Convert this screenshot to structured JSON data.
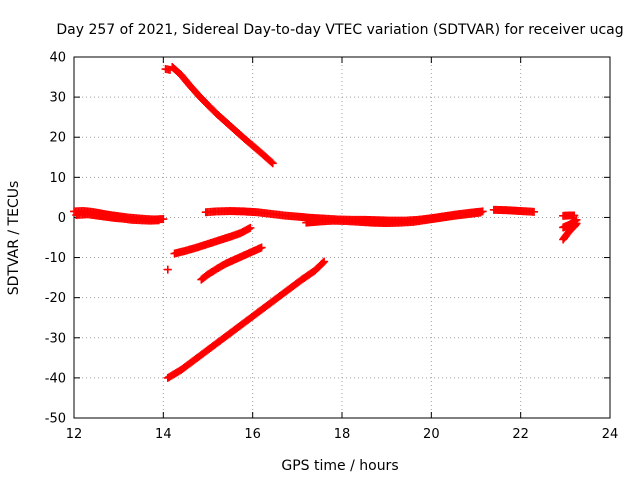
{
  "chart_data": {
    "type": "scatter",
    "title": "Day 257 of 2021, Sidereal Day-to-day VTEC variation (SDTVAR) for receiver ucag",
    "xlabel": "GPS time / hours",
    "ylabel": "SDTVAR / TECUs",
    "xlim": [
      12,
      24
    ],
    "ylim": [
      -50,
      40
    ],
    "x_ticks": [
      12,
      14,
      16,
      18,
      20,
      22,
      24
    ],
    "y_ticks": [
      -50,
      -40,
      -30,
      -20,
      -10,
      0,
      10,
      20,
      30,
      40
    ],
    "grid": true,
    "marker": "+",
    "color": "#ff0000",
    "series": [
      {
        "points": [
          [
            12.0,
            1.5
          ],
          [
            12.2,
            1.6
          ],
          [
            12.4,
            1.4
          ],
          [
            12.6,
            1.0
          ],
          [
            12.8,
            0.6
          ],
          [
            13.0,
            0.3
          ],
          [
            13.2,
            0.0
          ],
          [
            13.4,
            -0.2
          ],
          [
            13.6,
            -0.4
          ],
          [
            13.8,
            -0.5
          ],
          [
            14.0,
            -0.4
          ]
        ]
      },
      {
        "points": [
          [
            12.05,
            0.6
          ],
          [
            12.3,
            0.8
          ],
          [
            12.5,
            0.5
          ],
          [
            12.7,
            0.2
          ],
          [
            12.9,
            -0.1
          ],
          [
            13.1,
            -0.3
          ],
          [
            13.3,
            -0.6
          ],
          [
            13.5,
            -0.7
          ],
          [
            13.7,
            -0.8
          ],
          [
            13.9,
            -0.7
          ]
        ]
      },
      {
        "points": [
          [
            14.2,
            37.5
          ],
          [
            14.4,
            35.5
          ],
          [
            14.6,
            32.8
          ],
          [
            14.8,
            30.3
          ],
          [
            15.0,
            28.0
          ],
          [
            15.2,
            25.8
          ],
          [
            15.4,
            23.8
          ],
          [
            15.6,
            21.8
          ],
          [
            15.8,
            19.8
          ],
          [
            16.0,
            17.9
          ],
          [
            16.2,
            16.0
          ],
          [
            16.45,
            13.5
          ]
        ]
      },
      {
        "points": [
          [
            14.05,
            37.0
          ],
          [
            14.15,
            36.8
          ]
        ]
      },
      {
        "points": [
          [
            14.1,
            -13.0
          ]
        ]
      },
      {
        "points": [
          [
            14.25,
            -9.0
          ],
          [
            14.5,
            -8.3
          ],
          [
            14.75,
            -7.5
          ],
          [
            15.0,
            -6.6
          ],
          [
            15.25,
            -5.7
          ],
          [
            15.5,
            -4.8
          ],
          [
            15.75,
            -3.8
          ],
          [
            15.95,
            -2.6
          ]
        ]
      },
      {
        "points": [
          [
            14.85,
            -15.5
          ],
          [
            15.0,
            -14.2
          ],
          [
            15.2,
            -12.8
          ],
          [
            15.4,
            -11.5
          ],
          [
            15.6,
            -10.5
          ],
          [
            15.8,
            -9.5
          ],
          [
            16.0,
            -8.5
          ],
          [
            16.2,
            -7.5
          ]
        ]
      },
      {
        "points": [
          [
            14.1,
            -40.0
          ],
          [
            14.4,
            -38.0
          ],
          [
            14.7,
            -35.5
          ],
          [
            15.0,
            -33.0
          ],
          [
            15.3,
            -30.5
          ],
          [
            15.6,
            -28.0
          ],
          [
            15.9,
            -25.5
          ],
          [
            16.2,
            -23.0
          ],
          [
            16.5,
            -20.5
          ],
          [
            16.8,
            -18.0
          ],
          [
            17.1,
            -15.5
          ],
          [
            17.4,
            -13.2
          ],
          [
            17.6,
            -11.0
          ]
        ]
      },
      {
        "points": [
          [
            14.95,
            1.3
          ],
          [
            15.2,
            1.5
          ],
          [
            15.5,
            1.6
          ],
          [
            15.8,
            1.5
          ],
          [
            16.1,
            1.3
          ],
          [
            16.4,
            0.9
          ],
          [
            16.7,
            0.5
          ],
          [
            17.0,
            0.2
          ],
          [
            17.3,
            -0.1
          ],
          [
            17.6,
            -0.3
          ],
          [
            17.9,
            -0.5
          ],
          [
            18.2,
            -0.6
          ],
          [
            18.5,
            -0.6
          ],
          [
            18.8,
            -0.7
          ],
          [
            19.1,
            -0.8
          ],
          [
            19.4,
            -0.8
          ],
          [
            19.7,
            -0.6
          ],
          [
            20.0,
            -0.2
          ],
          [
            20.3,
            0.3
          ],
          [
            20.6,
            0.8
          ],
          [
            20.9,
            1.2
          ],
          [
            21.15,
            1.5
          ]
        ]
      },
      {
        "points": [
          [
            17.2,
            -1.3
          ],
          [
            17.5,
            -1.0
          ],
          [
            17.8,
            -0.8
          ],
          [
            18.1,
            -0.9
          ],
          [
            18.4,
            -1.1
          ],
          [
            18.7,
            -1.3
          ],
          [
            19.0,
            -1.4
          ],
          [
            19.3,
            -1.3
          ],
          [
            19.6,
            -1.1
          ],
          [
            19.9,
            -0.6
          ],
          [
            20.2,
            -0.1
          ],
          [
            20.5,
            0.4
          ],
          [
            20.8,
            0.8
          ],
          [
            21.1,
            1.2
          ]
        ]
      },
      {
        "points": [
          [
            21.4,
            1.9
          ],
          [
            21.7,
            1.8
          ],
          [
            22.0,
            1.6
          ],
          [
            22.3,
            1.4
          ]
        ]
      },
      {
        "points": [
          [
            22.95,
            0.4
          ],
          [
            23.1,
            0.5
          ],
          [
            23.2,
            0.5
          ]
        ]
      },
      {
        "points": [
          [
            22.95,
            -2.5
          ],
          [
            23.05,
            -2.0
          ],
          [
            23.15,
            -1.5
          ],
          [
            23.25,
            -0.6
          ]
        ]
      },
      {
        "points": [
          [
            22.95,
            -5.5
          ],
          [
            23.05,
            -4.0
          ],
          [
            23.12,
            -3.0
          ],
          [
            23.2,
            -2.2
          ],
          [
            23.25,
            -1.5
          ]
        ]
      }
    ]
  }
}
